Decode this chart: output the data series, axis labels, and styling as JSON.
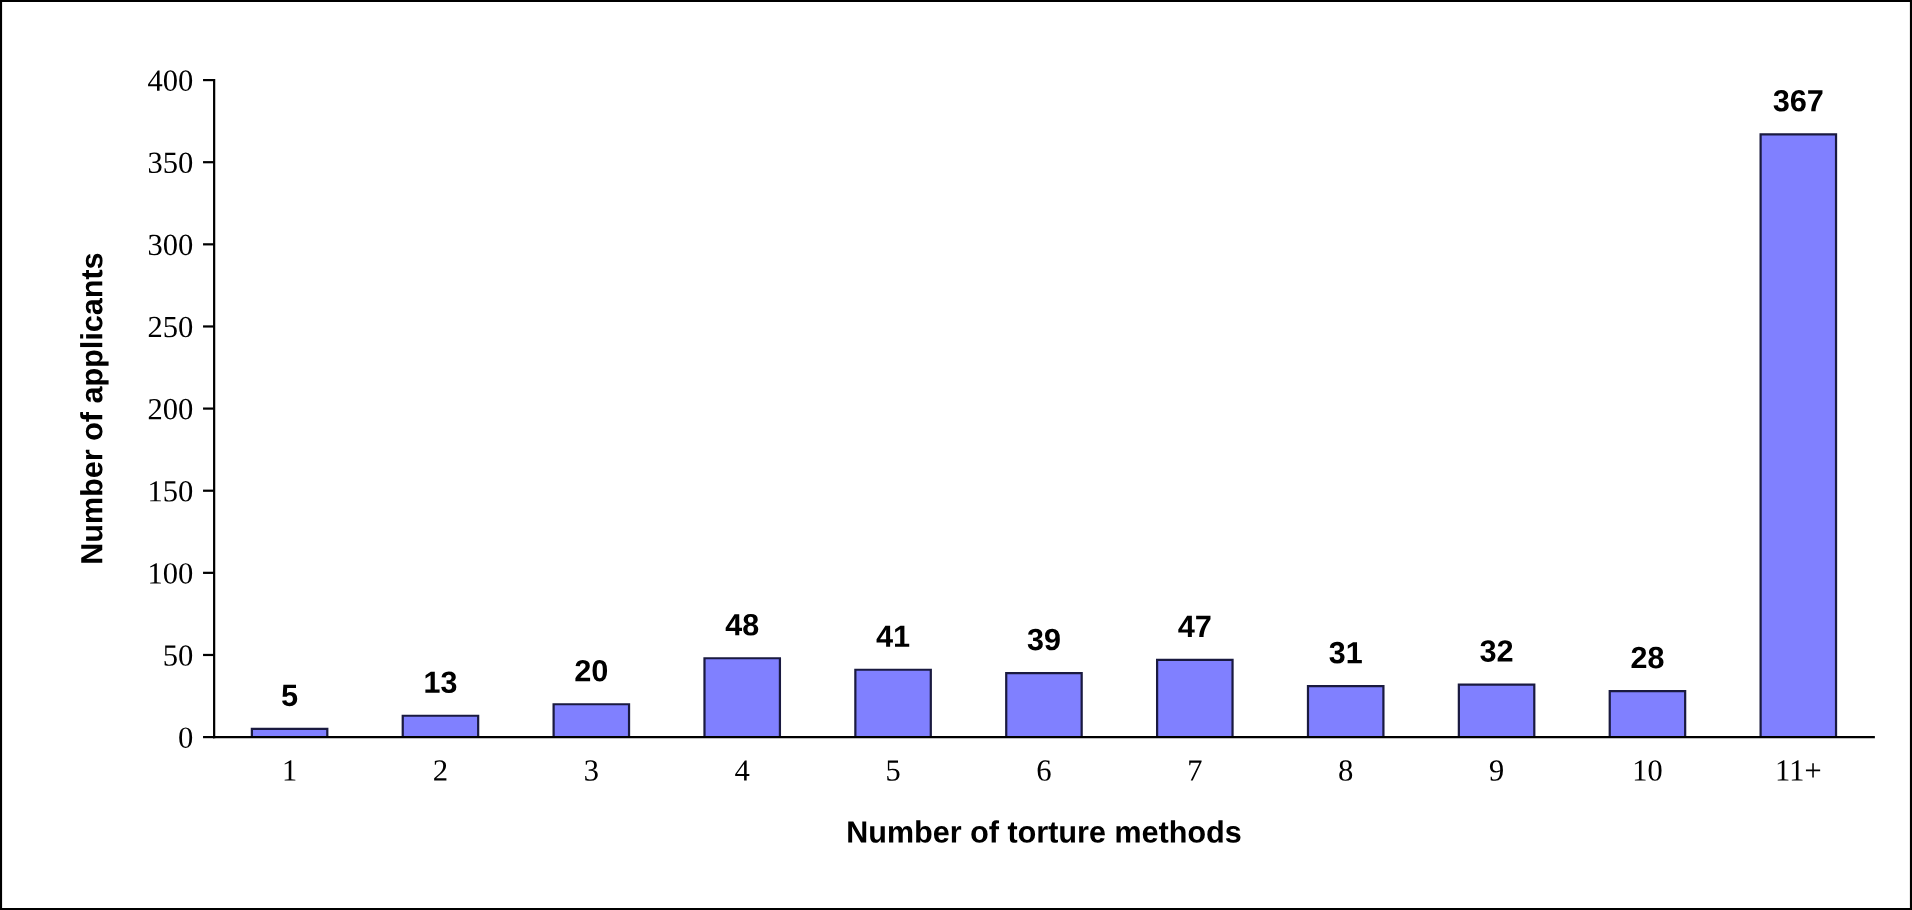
{
  "chart_data": {
    "type": "bar",
    "xlabel": "Number of torture methods",
    "ylabel": "Number of applicants",
    "categories": [
      "1",
      "2",
      "3",
      "4",
      "5",
      "6",
      "7",
      "8",
      "9",
      "10",
      "11+"
    ],
    "values": [
      5,
      13,
      20,
      48,
      41,
      39,
      47,
      31,
      32,
      28,
      367
    ],
    "color": "#8080ff",
    "ylim": [
      0,
      400
    ],
    "yticks": [
      0,
      50,
      100,
      150,
      200,
      250,
      300,
      350,
      400
    ],
    "data_labels": true,
    "grid": false,
    "legend": false
  }
}
